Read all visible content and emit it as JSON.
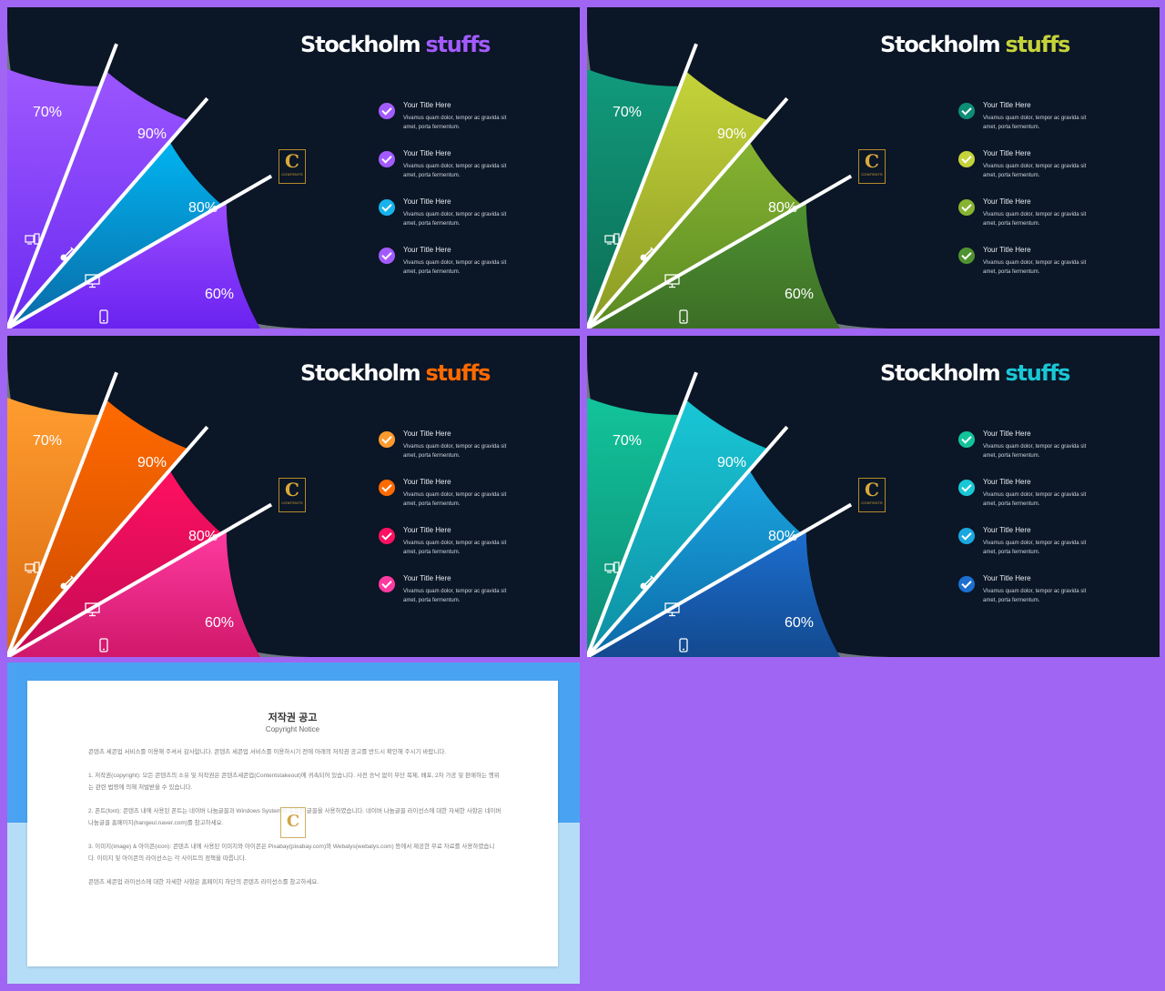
{
  "slides": [
    {
      "title_main": "Stockholm",
      "title_accent": "stuffs",
      "accent_color": "#a35bff",
      "check_colors": [
        "#a35bff",
        "#a35bff",
        "#16b3ea",
        "#a35bff"
      ],
      "sector_colors": [
        [
          "#9f59ff",
          "#6a2af0"
        ],
        [
          "#9b56ff",
          "#6a2af0"
        ],
        [
          "#00b4f0",
          "#0a6aa6"
        ],
        [
          "#9b4dff",
          "#6a22f0"
        ]
      ],
      "percents": [
        "70%",
        "90%",
        "80%",
        "60%"
      ]
    },
    {
      "title_main": "Stockholm",
      "title_accent": "stuffs",
      "accent_color": "#c5d33a",
      "check_colors": [
        "#0c8e77",
        "#c5d33a",
        "#86b330",
        "#4f9231"
      ],
      "sector_colors": [
        [
          "#119a7c",
          "#0c6d55"
        ],
        [
          "#c5d33a",
          "#8a9a24"
        ],
        [
          "#86b330",
          "#5a8a24"
        ],
        [
          "#4f9231",
          "#3c6e26"
        ]
      ],
      "percents": [
        "70%",
        "90%",
        "80%",
        "60%"
      ]
    },
    {
      "title_main": "Stockholm",
      "title_accent": "stuffs",
      "accent_color": "#ff6a00",
      "check_colors": [
        "#ff9a2e",
        "#ff6a00",
        "#ff1060",
        "#ff3aa0"
      ],
      "sector_colors": [
        [
          "#ff9d30",
          "#d9680e"
        ],
        [
          "#ff6a00",
          "#cc4a00"
        ],
        [
          "#ff1060",
          "#c20a55"
        ],
        [
          "#ff3aa0",
          "#d0186b"
        ]
      ],
      "percents": [
        "70%",
        "90%",
        "80%",
        "60%"
      ]
    },
    {
      "title_main": "Stockholm",
      "title_accent": "stuffs",
      "accent_color": "#19c7d6",
      "check_colors": [
        "#12c49a",
        "#19c7d6",
        "#1aa7e0",
        "#1c6fd0"
      ],
      "sector_colors": [
        [
          "#12c49a",
          "#0d8a74"
        ],
        [
          "#19c7d6",
          "#0e8ea3"
        ],
        [
          "#1aa7e0",
          "#0c6aa8"
        ],
        [
          "#1c6fd0",
          "#13498f"
        ]
      ],
      "percents": [
        "70%",
        "90%",
        "80%",
        "60%"
      ]
    }
  ],
  "items": [
    {
      "title": "Your Title Here",
      "desc": "Vivamus quam dolor, tempor ac gravida sit amet, porta fermentum."
    },
    {
      "title": "Your Title Here",
      "desc": "Vivamus quam dolor, tempor ac gravida sit amet, porta fermentum."
    },
    {
      "title": "Your Title Here",
      "desc": "Vivamus quam dolor, tempor ac gravida sit amet, porta fermentum."
    },
    {
      "title": "Your Title Here",
      "desc": "Vivamus quam dolor, tempor ac gravida sit amet, porta fermentum."
    }
  ],
  "logo": {
    "letter": "C",
    "caption": "CONTENTS",
    "icon": "contents-logo-icon"
  },
  "sector_icons": [
    "computer-icon",
    "guitar-icon",
    "monitor-icon",
    "phone-icon"
  ],
  "notice": {
    "title": "저작권 공고",
    "subtitle": "Copyright Notice",
    "paragraphs": [
      "콘텐츠 세콘업 서비스를 이용해 주셔서 감사합니다. 콘텐츠 세콘업 서비스를 이용하시기 전에 아래의 저작권 공고를 반드시 확인해 주시기 바랍니다.",
      "1. 저작권(copyright): 모든 콘텐츠의 소유 및 저작권은 콘텐츠세콘업(Contentstakeout)에 귀속되어 있습니다. 사전 승낙 없이 무단 복제, 배포, 2차 가공 및 판매하는 행위는 관련 법령에 의해 처벌받을 수 있습니다.",
      "2. 폰트(font): 콘텐츠 내에 사용된 폰트는 네이버 나눔글꼴과 Windows System에 포함된 글꼴을 사용하였습니다. 네이버 나눔글꼴 라이선스에 대한 자세한 사항은 네이버 나눔글꼴 홈페이지(hangeul.naver.com)를 참고하세요.",
      "3. 이미지(image) & 아이콘(icon): 콘텐츠 내에 사용된 이미지와 아이콘은 Pixabay(pixabay.com)와 Webalys(webalys.com) 등에서 제공한 무료 자료를 사용하였습니다. 이미지 및 아이콘의 라이선스는 각 사이트의 정책을 따릅니다.",
      "콘텐츠 세콘업 라이선스에 대한 자세한 사항은 홈페이지 하단의 콘텐츠 라이선스를 참고하세요."
    ]
  }
}
